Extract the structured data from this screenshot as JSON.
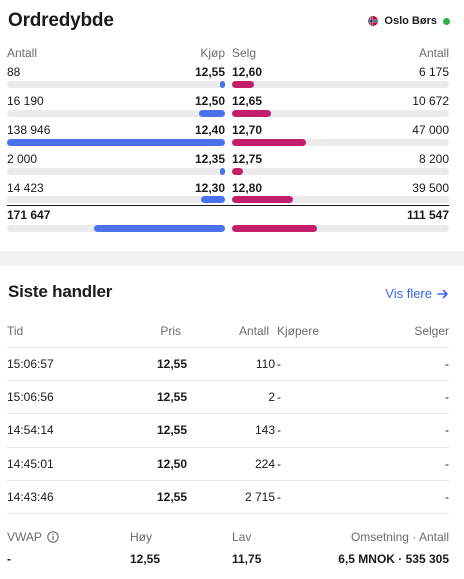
{
  "orderbook": {
    "title": "Ordredybde",
    "exchange": "Oslo Børs",
    "headers": {
      "bid_qty": "Antall",
      "bid": "Kjøp",
      "ask": "Selg",
      "ask_qty": "Antall"
    },
    "rows": [
      {
        "bid_qty": "88",
        "bid": "12,55",
        "ask": "12,60",
        "ask_qty": "6 175",
        "bid_fill": 0.02,
        "ask_fill": 0.1
      },
      {
        "bid_qty": "16 190",
        "bid": "12,50",
        "ask": "12,65",
        "ask_qty": "10 672",
        "bid_fill": 0.12,
        "ask_fill": 0.18
      },
      {
        "bid_qty": "138 946",
        "bid": "12,40",
        "ask": "12,70",
        "ask_qty": "47 000",
        "bid_fill": 1.0,
        "ask_fill": 0.34
      },
      {
        "bid_qty": "2 000",
        "bid": "12,35",
        "ask": "12,75",
        "ask_qty": "8 200",
        "bid_fill": 0.02,
        "ask_fill": 0.05
      },
      {
        "bid_qty": "14 423",
        "bid": "12,30",
        "ask": "12,80",
        "ask_qty": "39 500",
        "bid_fill": 0.11,
        "ask_fill": 0.28
      }
    ],
    "totals": {
      "bid_qty": "171 647",
      "ask_qty": "111 547",
      "bid_fill": 0.6,
      "ask_fill": 0.39
    },
    "colors": {
      "bid": "#4a72ee",
      "ask": "#c41e6b",
      "live": "#2bb34a"
    }
  },
  "trades": {
    "title": "Siste handler",
    "more_link": "Vis flere",
    "headers": {
      "time": "Tid",
      "price": "Pris",
      "qty": "Antall",
      "buyer": "Kjøpere",
      "seller": "Selger"
    },
    "rows": [
      {
        "time": "15:06:57",
        "price": "12,55",
        "qty": "110",
        "buyer": "-",
        "seller": "-"
      },
      {
        "time": "15:06:56",
        "price": "12,55",
        "qty": "2",
        "buyer": "-",
        "seller": "-"
      },
      {
        "time": "14:54:14",
        "price": "12,55",
        "qty": "143",
        "buyer": "-",
        "seller": "-"
      },
      {
        "time": "14:45:01",
        "price": "12,50",
        "qty": "224",
        "buyer": "-",
        "seller": "-"
      },
      {
        "time": "14:43:46",
        "price": "12,55",
        "qty": "2 715",
        "buyer": "-",
        "seller": "-"
      }
    ]
  },
  "summary": {
    "vwap_label": "VWAP",
    "vwap_value": "-",
    "high_label": "Høy",
    "high_value": "12,55",
    "low_label": "Lav",
    "low_value": "11,75",
    "turnover_label": "Omsetning · Antall",
    "turnover_value": "6,5 MNOK · 535 305"
  }
}
